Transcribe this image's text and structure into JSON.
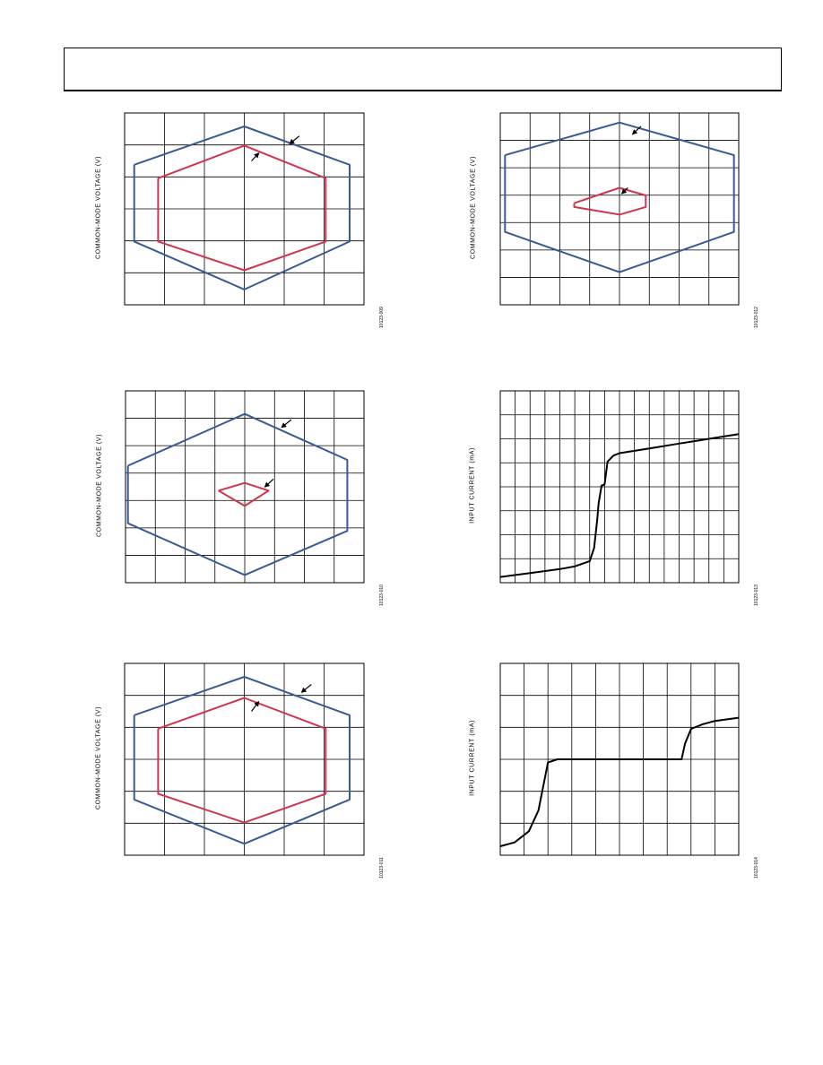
{
  "panels": [
    {
      "id": "p1",
      "ylabel": "COMMON-MODE VOLTAGE (V)",
      "figure_id": "10123-009",
      "grid": {
        "cols": 6,
        "rows": 6
      },
      "chart_data": {
        "type": "line",
        "xlim": [
          0,
          1
        ],
        "ylim": [
          0,
          1
        ],
        "series": [
          {
            "color": "#3a5a95",
            "x": [
              0.04,
              0.5,
              0.94,
              0.94,
              0.5,
              0.04,
              0.04
            ],
            "y": [
              0.73,
              0.93,
              0.73,
              0.33,
              0.08,
              0.33,
              0.73
            ]
          },
          {
            "color": "#d0354f",
            "x": [
              0.14,
              0.5,
              0.84,
              0.84,
              0.5,
              0.14,
              0.14
            ],
            "y": [
              0.66,
              0.83,
              0.66,
              0.33,
              0.18,
              0.33,
              0.66
            ]
          }
        ],
        "arrows": [
          [
            0.73,
            0.88,
            0.69,
            0.84
          ],
          [
            0.53,
            0.75,
            0.56,
            0.79
          ]
        ]
      }
    },
    {
      "id": "p2",
      "ylabel": "COMMON-MODE VOLTAGE (V)",
      "figure_id": "10123-012",
      "grid": {
        "cols": 8,
        "rows": 7
      },
      "chart_data": {
        "type": "line",
        "xlim": [
          0,
          1
        ],
        "ylim": [
          0,
          1
        ],
        "series": [
          {
            "color": "#3a5a95",
            "x": [
              0.02,
              0.5,
              0.98,
              0.98,
              0.5,
              0.02,
              0.02
            ],
            "y": [
              0.78,
              0.95,
              0.78,
              0.38,
              0.17,
              0.38,
              0.78
            ]
          },
          {
            "color": "#d0354f",
            "x": [
              0.31,
              0.5,
              0.61,
              0.61,
              0.5,
              0.31,
              0.31
            ],
            "y": [
              0.53,
              0.61,
              0.57,
              0.51,
              0.47,
              0.51,
              0.53
            ]
          }
        ],
        "arrows": [
          [
            0.59,
            0.93,
            0.555,
            0.89
          ],
          [
            0.535,
            0.61,
            0.51,
            0.58
          ]
        ]
      }
    },
    {
      "id": "p3",
      "ylabel": "COMMON-MODE VOLTAGE (V)",
      "figure_id": "10123-010",
      "grid": {
        "cols": 8,
        "rows": 7
      },
      "chart_data": {
        "type": "line",
        "xlim": [
          0,
          1
        ],
        "ylim": [
          0,
          1
        ],
        "series": [
          {
            "color": "#3a5a95",
            "x": [
              0.01,
              0.5,
              0.93,
              0.93,
              0.5,
              0.01,
              0.01
            ],
            "y": [
              0.61,
              0.88,
              0.64,
              0.27,
              0.04,
              0.31,
              0.61
            ]
          },
          {
            "color": "#d0354f",
            "x": [
              0.39,
              0.5,
              0.6,
              0.5,
              0.39
            ],
            "y": [
              0.48,
              0.52,
              0.48,
              0.4,
              0.48
            ]
          }
        ],
        "arrows": [
          [
            0.695,
            0.85,
            0.655,
            0.81
          ],
          [
            0.62,
            0.54,
            0.585,
            0.5
          ]
        ]
      }
    },
    {
      "id": "p4",
      "ylabel": "INPUT CURRENT (mA)",
      "figure_id": "10123-013",
      "grid": {
        "cols": 16,
        "rows": 8
      },
      "chart_data": {
        "type": "line",
        "xlim": [
          0,
          16
        ],
        "ylim": [
          0,
          8
        ],
        "series": [
          {
            "color": "#000000",
            "x": [
              0,
              2,
              4,
              5,
              6,
              6.3,
              6.5,
              6.6,
              6.8,
              7,
              7.2,
              7.6,
              8,
              10,
              12,
              14,
              16
            ],
            "y": [
              0.24,
              0.4,
              0.57,
              0.68,
              0.9,
              1.45,
              2.6,
              3.3,
              4.05,
              4.1,
              5.05,
              5.3,
              5.4,
              5.6,
              5.8,
              6.0,
              6.2
            ]
          }
        ]
      }
    },
    {
      "id": "p5",
      "ylabel": "COMMON-MODE VOLTAGE (V)",
      "figure_id": "10123-011",
      "grid": {
        "cols": 6,
        "rows": 6
      },
      "chart_data": {
        "type": "line",
        "xlim": [
          0,
          1
        ],
        "ylim": [
          0,
          1
        ],
        "series": [
          {
            "color": "#3a5a95",
            "x": [
              0.04,
              0.5,
              0.94,
              0.94,
              0.5,
              0.04,
              0.04
            ],
            "y": [
              0.73,
              0.93,
              0.73,
              0.29,
              0.06,
              0.29,
              0.73
            ]
          },
          {
            "color": "#d0354f",
            "x": [
              0.14,
              0.5,
              0.84,
              0.84,
              0.5,
              0.14,
              0.14
            ],
            "y": [
              0.66,
              0.82,
              0.66,
              0.32,
              0.17,
              0.32,
              0.66
            ]
          }
        ],
        "arrows": [
          [
            0.78,
            0.89,
            0.74,
            0.85
          ],
          [
            0.53,
            0.75,
            0.56,
            0.8
          ]
        ]
      }
    },
    {
      "id": "p6",
      "ylabel": "INPUT CURRENT (mA)",
      "figure_id": "10123-014",
      "grid": {
        "cols": 10,
        "rows": 6
      },
      "chart_data": {
        "type": "line",
        "xlim": [
          0,
          10
        ],
        "ylim": [
          0,
          6
        ],
        "series": [
          {
            "color": "#000000",
            "x": [
              0,
              0.6,
              1.2,
              1.6,
              2.0,
              2.4,
              2.5,
              4,
              6,
              7.6,
              7.75,
              8,
              8.5,
              9,
              10
            ],
            "y": [
              0.28,
              0.4,
              0.75,
              1.4,
              2.9,
              3.0,
              3.0,
              3.0,
              3.0,
              3.0,
              3.5,
              3.95,
              4.1,
              4.2,
              4.3
            ]
          }
        ]
      }
    }
  ]
}
